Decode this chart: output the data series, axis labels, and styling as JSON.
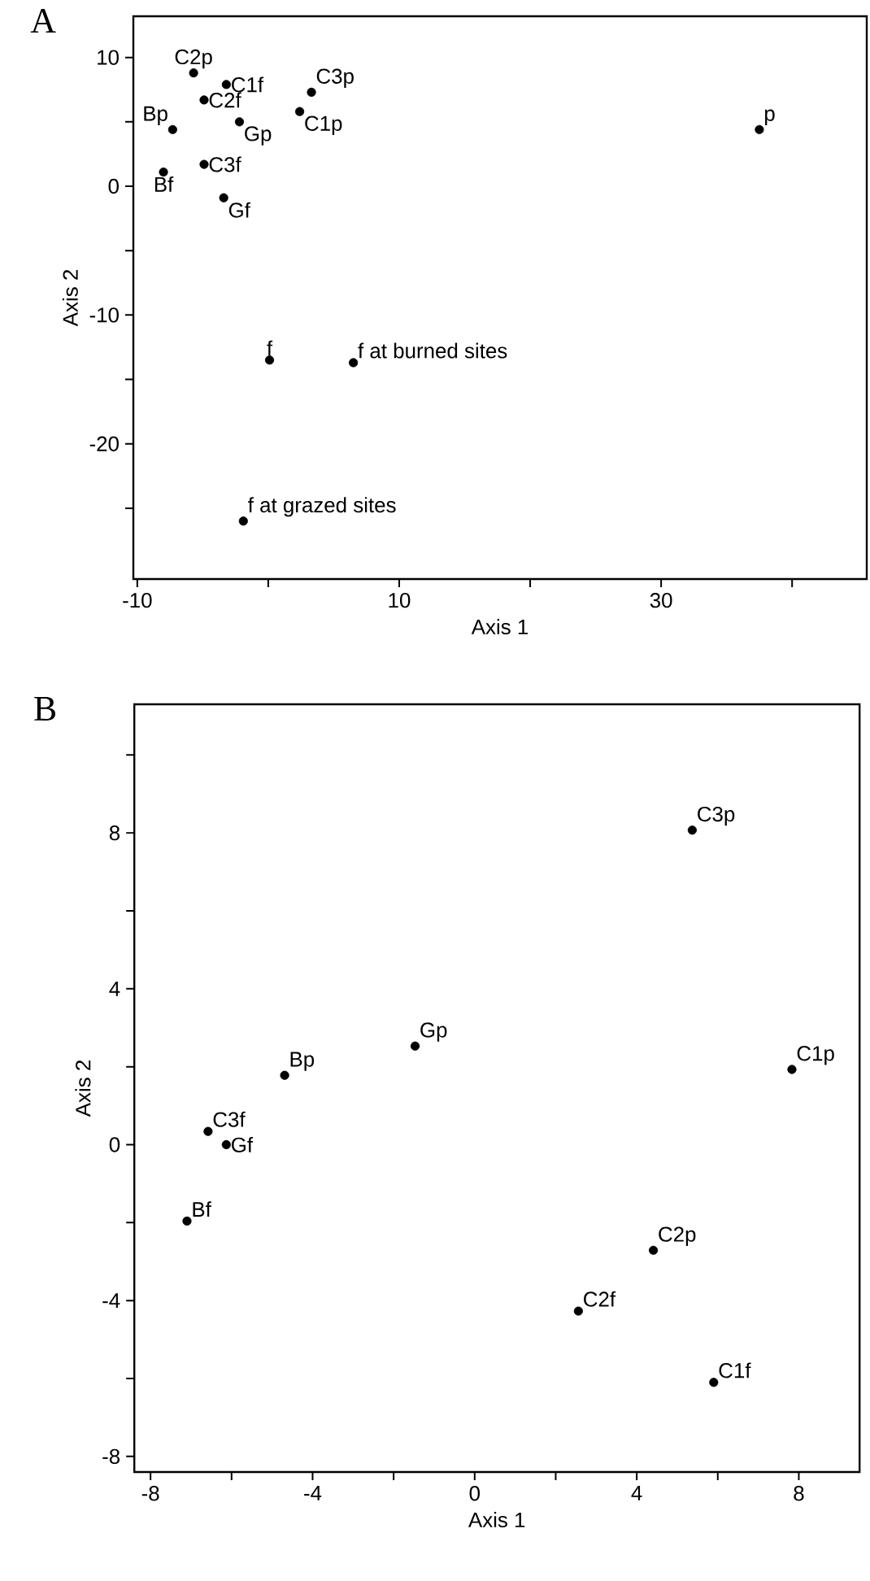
{
  "chart_data": [
    {
      "type": "scatter",
      "title": "A",
      "xlabel": "Axis 1",
      "ylabel": "Axis 2",
      "marker": "circle",
      "xlim": [
        -10.3,
        45.7
      ],
      "ylim": [
        -30.5,
        13.2
      ],
      "xticks": [
        -10,
        {
          "value": 0,
          "label": null
        },
        10,
        {
          "value": 20,
          "label": null
        },
        30,
        {
          "value": 40,
          "label": null
        }
      ],
      "yticks": [
        {
          "value": -25,
          "label": null
        },
        -20,
        {
          "value": -15,
          "label": null
        },
        -10,
        {
          "value": -5,
          "label": null
        },
        0,
        {
          "value": 5,
          "label": null
        },
        10
      ],
      "series": [
        {
          "color": "#000000",
          "x": [
            -5.7,
            -3.2,
            3.3,
            -4.9,
            -2.2,
            2.4,
            -7.3,
            37.5,
            -4.9,
            -8.0,
            -3.4,
            0.1,
            6.5,
            -1.9
          ],
          "values": [
            8.8,
            7.9,
            7.3,
            6.7,
            5.0,
            5.8,
            4.4,
            4.4,
            1.7,
            1.1,
            -0.9,
            -13.5,
            -13.7,
            -26.0
          ]
        }
      ],
      "annotations": [
        {
          "text": "C2p",
          "x": -5.7,
          "y": 8.8
        },
        {
          "text": "C1f",
          "x": -3.2,
          "y": 7.9
        },
        {
          "text": "C3p",
          "x": 3.3,
          "y": 7.3
        },
        {
          "text": "C2f",
          "x": -4.9,
          "y": 6.7
        },
        {
          "text": "Gp",
          "x": -2.2,
          "y": 5.0
        },
        {
          "text": "C1p",
          "x": 2.4,
          "y": 5.8
        },
        {
          "text": "Bp",
          "x": -7.3,
          "y": 4.4
        },
        {
          "text": "p",
          "x": 37.5,
          "y": 4.4
        },
        {
          "text": "C3f",
          "x": -4.9,
          "y": 1.7
        },
        {
          "text": "Bf",
          "x": -8.0,
          "y": 1.1
        },
        {
          "text": "Gf",
          "x": -3.4,
          "y": -0.9
        },
        {
          "text": "f",
          "x": 0.1,
          "y": -13.5
        },
        {
          "text": "f at burned sites",
          "x": 6.5,
          "y": -13.7
        },
        {
          "text": "f at grazed sites",
          "x": -1.9,
          "y": -26.0
        }
      ]
    },
    {
      "type": "scatter",
      "title": "B",
      "xlabel": "Axis 1",
      "ylabel": "Axis 2",
      "marker": "circle",
      "xlim": [
        -8.4,
        9.5
      ],
      "ylim": [
        -8.4,
        11.3
      ],
      "xticks": [
        -8,
        {
          "value": -6,
          "label": null
        },
        -4,
        {
          "value": -2,
          "label": null
        },
        0,
        {
          "value": 2,
          "label": null
        },
        4,
        {
          "value": 6,
          "label": null
        },
        8
      ],
      "yticks": [
        -8,
        {
          "value": -6,
          "label": null
        },
        -4,
        {
          "value": -2,
          "label": null
        },
        0,
        {
          "value": 2,
          "label": null
        },
        4,
        {
          "value": 6,
          "label": null
        },
        8,
        {
          "value": 10,
          "label": null
        }
      ],
      "series": [
        {
          "color": "#000000",
          "x": [
            5.37,
            -1.47,
            -4.69,
            7.83,
            -6.58,
            -6.13,
            -7.1,
            4.41,
            2.56,
            5.9
          ],
          "values": [
            8.07,
            2.53,
            1.78,
            1.93,
            0.34,
            0.0,
            -1.96,
            -2.71,
            -4.27,
            -6.1
          ]
        }
      ],
      "annotations": [
        {
          "text": "C3p",
          "x": 5.37,
          "y": 8.07
        },
        {
          "text": "Gp",
          "x": -1.47,
          "y": 2.53
        },
        {
          "text": "Bp",
          "x": -4.69,
          "y": 1.78
        },
        {
          "text": "C1p",
          "x": 7.83,
          "y": 1.93
        },
        {
          "text": "C3f",
          "x": -6.58,
          "y": 0.34
        },
        {
          "text": "Gf",
          "x": -6.13,
          "y": 0.0
        },
        {
          "text": "Bf",
          "x": -7.1,
          "y": -1.96
        },
        {
          "text": "C2p",
          "x": 4.41,
          "y": -2.71
        },
        {
          "text": "C2f",
          "x": 2.56,
          "y": -4.27
        },
        {
          "text": "C1f",
          "x": 5.9,
          "y": -6.1
        }
      ]
    }
  ]
}
